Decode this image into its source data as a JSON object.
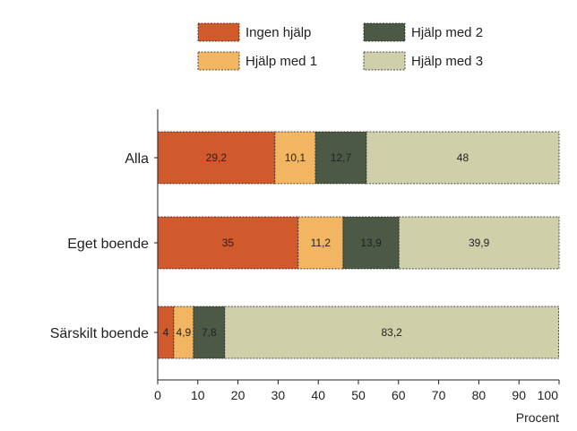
{
  "chart_data": {
    "type": "bar",
    "orientation": "horizontal",
    "stacked": true,
    "categories": [
      "Alla",
      "Eget boende",
      "Särskilt boende"
    ],
    "series": [
      {
        "name": "Ingen hjälp",
        "color": "#d05a2c",
        "values": [
          29.2,
          35,
          4
        ],
        "labels": [
          "29,2",
          "35",
          "4"
        ]
      },
      {
        "name": "Hjälp med 1",
        "color": "#f2b561",
        "values": [
          10.1,
          11.2,
          4.9
        ],
        "labels": [
          "10,1",
          "11,2",
          "4,9"
        ]
      },
      {
        "name": "Hjälp med 2",
        "color": "#4c5a45",
        "values": [
          12.7,
          13.9,
          7.8
        ],
        "labels": [
          "12,7",
          "13,9",
          "7,8"
        ]
      },
      {
        "name": "Hjälp med 3",
        "color": "#cfcfaa",
        "values": [
          48,
          39.9,
          83.2
        ],
        "labels": [
          "48",
          "39,9",
          "83,2"
        ]
      }
    ],
    "xlim": [
      0,
      100
    ],
    "xticks": [
      "0",
      "10",
      "20",
      "30",
      "40",
      "50",
      "60",
      "70",
      "80",
      "90",
      "100"
    ],
    "xlabel": "Procent",
    "ylabel": "",
    "title": "",
    "grid": false,
    "legend": "top"
  }
}
